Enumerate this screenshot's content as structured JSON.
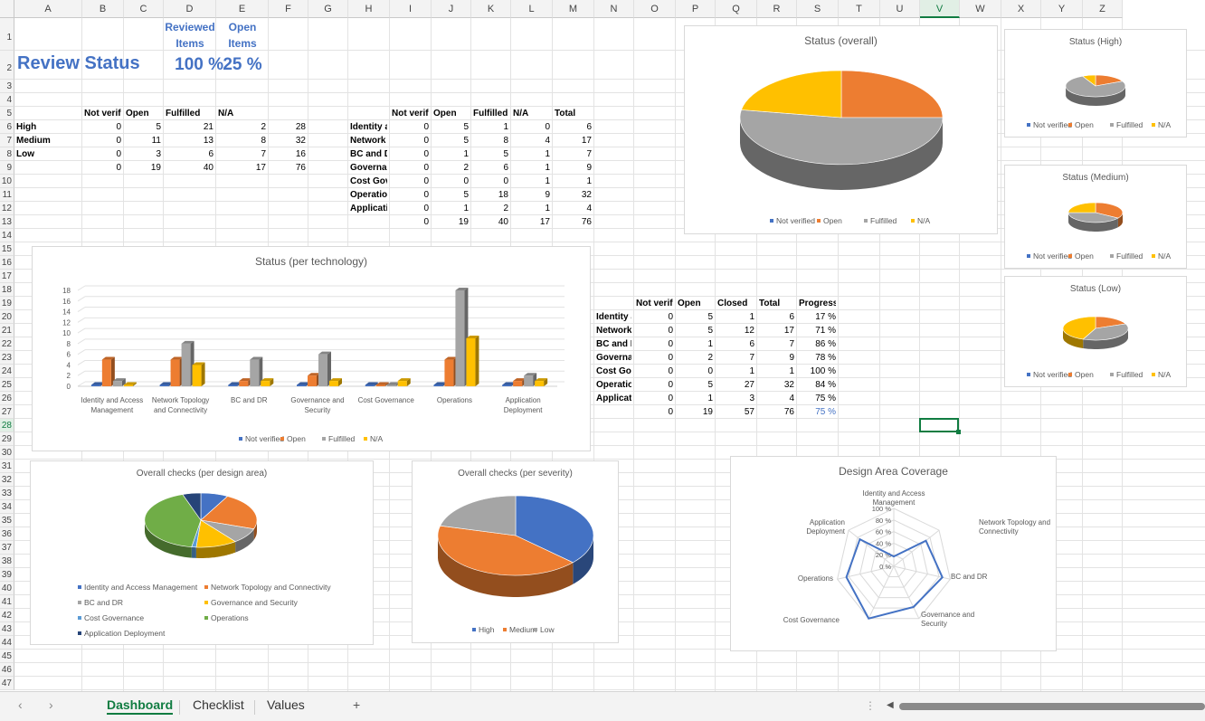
{
  "columns": [
    "A",
    "B",
    "C",
    "D",
    "E",
    "F",
    "G",
    "H",
    "I",
    "J",
    "K",
    "L",
    "M",
    "N",
    "O",
    "P",
    "Q",
    "R",
    "S",
    "T",
    "U",
    "V",
    "W",
    "X",
    "Y",
    "Z"
  ],
  "rows": [
    "1",
    "2",
    "3",
    "4",
    "5",
    "6",
    "7",
    "8",
    "9",
    "10",
    "11",
    "12",
    "13",
    "14",
    "15",
    "16",
    "17",
    "18",
    "19",
    "20",
    "21",
    "22",
    "23",
    "24",
    "25",
    "26",
    "27",
    "28",
    "29",
    "30",
    "31",
    "32",
    "33",
    "34",
    "35",
    "36",
    "37",
    "38",
    "39",
    "40",
    "41",
    "42",
    "43",
    "44",
    "45",
    "46",
    "47"
  ],
  "header": {
    "reviewed_label": "Reviewed Items",
    "open_label": "Open Items",
    "title": "Review Status",
    "reviewed_value": "100 %",
    "open_value": "25 %"
  },
  "severity_table": {
    "headers": [
      "Not verifi",
      "Open",
      "Fulfilled",
      "N/A",
      ""
    ],
    "rows": [
      {
        "label": "High",
        "values": [
          "0",
          "5",
          "21",
          "2",
          "28"
        ]
      },
      {
        "label": "Medium",
        "values": [
          "0",
          "11",
          "13",
          "8",
          "32"
        ]
      },
      {
        "label": "Low",
        "values": [
          "0",
          "3",
          "6",
          "7",
          "16"
        ]
      },
      {
        "label": "",
        "values": [
          "0",
          "19",
          "40",
          "17",
          "76"
        ]
      }
    ]
  },
  "area_table": {
    "headers": [
      "Not verifi",
      "Open",
      "Fulfilled",
      "N/A",
      "Total"
    ],
    "rows": [
      {
        "label": "Identity a",
        "values": [
          "0",
          "5",
          "1",
          "0",
          "6"
        ]
      },
      {
        "label": "Network",
        "values": [
          "0",
          "5",
          "8",
          "4",
          "17"
        ]
      },
      {
        "label": "BC and DI",
        "values": [
          "0",
          "1",
          "5",
          "1",
          "7"
        ]
      },
      {
        "label": "Governar",
        "values": [
          "0",
          "2",
          "6",
          "1",
          "9"
        ]
      },
      {
        "label": "Cost Gov",
        "values": [
          "0",
          "0",
          "0",
          "1",
          "1"
        ]
      },
      {
        "label": "Operatio",
        "values": [
          "0",
          "5",
          "18",
          "9",
          "32"
        ]
      },
      {
        "label": "Applicati",
        "values": [
          "0",
          "1",
          "2",
          "1",
          "4"
        ]
      },
      {
        "label": "",
        "values": [
          "0",
          "19",
          "40",
          "17",
          "76"
        ]
      }
    ]
  },
  "progress_table": {
    "headers": [
      "Not verifi",
      "Open",
      "Closed",
      "Total",
      "Progress"
    ],
    "rows": [
      {
        "label": "Identity a",
        "values": [
          "0",
          "5",
          "1",
          "6",
          "17 %"
        ]
      },
      {
        "label": "Network",
        "values": [
          "0",
          "5",
          "12",
          "17",
          "71 %"
        ]
      },
      {
        "label": "BC and DI",
        "values": [
          "0",
          "1",
          "6",
          "7",
          "86 %"
        ]
      },
      {
        "label": "Governar",
        "values": [
          "0",
          "2",
          "7",
          "9",
          "78 %"
        ]
      },
      {
        "label": "Cost Gov",
        "values": [
          "0",
          "0",
          "1",
          "1",
          "100 %"
        ]
      },
      {
        "label": "Operatio",
        "values": [
          "0",
          "5",
          "27",
          "32",
          "84 %"
        ]
      },
      {
        "label": "Applicati",
        "values": [
          "0",
          "1",
          "3",
          "4",
          "75 %"
        ]
      },
      {
        "label": "",
        "values": [
          "0",
          "19",
          "57",
          "76",
          "75 %"
        ]
      }
    ]
  },
  "colors": {
    "blue": "#4472c4",
    "orange": "#ed7d31",
    "gray": "#a5a5a5",
    "yellow": "#ffc000",
    "lightblue": "#5b9bd5",
    "green": "#70ad47",
    "navy": "#264478",
    "accent": "#107c41"
  },
  "status_legend": [
    "Not verified",
    "Open",
    "Fulfilled",
    "N/A"
  ],
  "chart_data": [
    {
      "id": "status-overall",
      "type": "pie",
      "title": "Status (overall)",
      "categories": [
        "Not verified",
        "Open",
        "Fulfilled",
        "N/A"
      ],
      "values": [
        0,
        19,
        40,
        17
      ]
    },
    {
      "id": "status-high",
      "type": "pie",
      "title": "Status (High)",
      "categories": [
        "Not verified",
        "Open",
        "Fulfilled",
        "N/A"
      ],
      "values": [
        0,
        5,
        21,
        2
      ]
    },
    {
      "id": "status-medium",
      "type": "pie",
      "title": "Status (Medium)",
      "categories": [
        "Not verified",
        "Open",
        "Fulfilled",
        "N/A"
      ],
      "values": [
        0,
        11,
        13,
        8
      ]
    },
    {
      "id": "status-low",
      "type": "pie",
      "title": "Status (Low)",
      "categories": [
        "Not verified",
        "Open",
        "Fulfilled",
        "N/A"
      ],
      "values": [
        0,
        3,
        6,
        7
      ]
    },
    {
      "id": "status-per-technology",
      "type": "bar",
      "title": "Status (per technology)",
      "categories": [
        "Identity and Access Management",
        "Network Topology and Connectivity",
        "BC and DR",
        "Governance and Security",
        "Cost Governance",
        "Operations",
        "Application Deployment"
      ],
      "series": [
        {
          "name": "Not verified",
          "values": [
            0,
            0,
            0,
            0,
            0,
            0,
            0
          ]
        },
        {
          "name": "Open",
          "values": [
            5,
            5,
            1,
            2,
            0,
            5,
            1
          ]
        },
        {
          "name": "Fulfilled",
          "values": [
            1,
            8,
            5,
            6,
            0,
            18,
            2
          ]
        },
        {
          "name": "N/A",
          "values": [
            0,
            4,
            1,
            1,
            1,
            9,
            1
          ]
        }
      ],
      "yticks": [
        "0",
        "2",
        "4",
        "6",
        "8",
        "10",
        "12",
        "14",
        "16",
        "18"
      ],
      "ylim": [
        0,
        18
      ]
    },
    {
      "id": "checks-per-design-area",
      "type": "pie",
      "title": "Overall checks (per design area)",
      "categories": [
        "Identity and Access Management",
        "Network Topology and Connectivity",
        "BC and DR",
        "Governance and Security",
        "Cost Governance",
        "Operations",
        "Application Deployment"
      ],
      "values": [
        6,
        17,
        7,
        9,
        1,
        32,
        4
      ]
    },
    {
      "id": "checks-per-severity",
      "type": "pie",
      "title": "Overall checks (per severity)",
      "categories": [
        "High",
        "Medium",
        "Low"
      ],
      "values": [
        28,
        32,
        16
      ]
    },
    {
      "id": "design-area-coverage",
      "type": "radar",
      "title": "Design Area Coverage",
      "categories": [
        "Identity and Access Management",
        "Network Topology and Connectivity",
        "BC and DR",
        "Governance and Security",
        "Cost Governance",
        "Operations",
        "Application Deployment"
      ],
      "values": [
        17,
        71,
        86,
        78,
        100,
        84,
        75
      ],
      "ticks": [
        "0 %",
        "20 %",
        "40 %",
        "60 %",
        "80 %",
        "100 %"
      ],
      "ylim": [
        0,
        100
      ]
    }
  ],
  "tabs": [
    "Dashboard",
    "Checklist",
    "Values"
  ],
  "active_tab": "Dashboard",
  "add_sheet": "+"
}
